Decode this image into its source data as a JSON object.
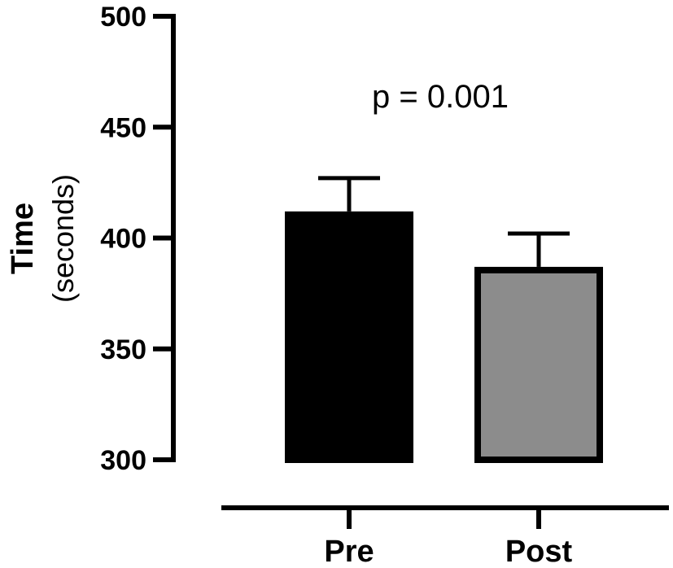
{
  "chart_data": {
    "type": "bar",
    "categories": [
      "Pre",
      "Post"
    ],
    "values": [
      412,
      387
    ],
    "errors": [
      15,
      15
    ],
    "ylabel_main": "Time",
    "ylabel_sub": "(seconds)",
    "ylim": [
      300,
      500
    ],
    "yticks": [
      "300",
      "350",
      "400",
      "450",
      "500"
    ],
    "annotation": "p = 0.001",
    "bar_fill_colors": [
      "#000000",
      "#8c8c8c"
    ],
    "bar_edge_color": "#000000",
    "grid": false,
    "legend": "none"
  }
}
